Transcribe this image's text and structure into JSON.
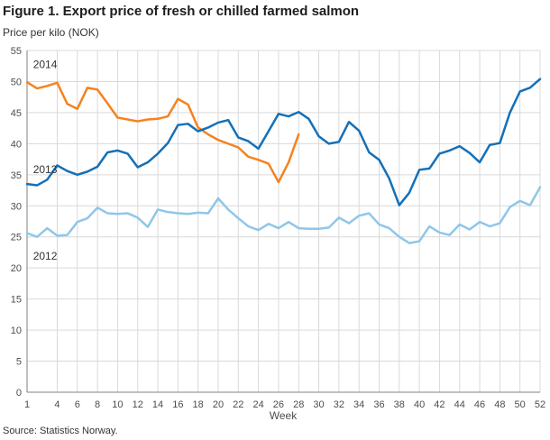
{
  "title": "Figure 1. Export price of fresh or chilled farmed salmon",
  "subtitle": "Price per kilo (NOK)",
  "source": "Source: Statistics Norway.",
  "chart_data": {
    "type": "line",
    "title": "Figure 1. Export price of fresh or chilled farmed salmon",
    "subtitle": "Price per kilo (NOK)",
    "xlabel": "Week",
    "ylabel": "Price per kilo (NOK)",
    "xlim": [
      1,
      52
    ],
    "ylim": [
      0,
      55
    ],
    "grid": true,
    "legend_position": "inline-labels",
    "x_ticks": [
      1,
      4,
      6,
      8,
      10,
      12,
      14,
      16,
      18,
      20,
      22,
      24,
      26,
      28,
      30,
      32,
      34,
      36,
      38,
      40,
      42,
      44,
      46,
      48,
      50,
      52
    ],
    "y_ticks": [
      0,
      5,
      10,
      15,
      20,
      25,
      30,
      35,
      40,
      45,
      50,
      55
    ],
    "colors": {
      "grid": "#d9d9d9",
      "axis": "#808080",
      "tick_text": "#4d4d4d"
    },
    "series": [
      {
        "name": "2014",
        "color": "#f58220",
        "label": {
          "week": 1.6,
          "value": 52.2
        },
        "values": [
          49.9,
          48.9,
          49.3,
          49.8,
          46.4,
          45.6,
          49.0,
          48.7,
          46.5,
          44.2,
          43.9,
          43.6,
          43.9,
          44.0,
          44.4,
          47.2,
          46.3,
          42.6,
          41.5,
          40.6,
          40.0,
          39.4,
          37.9,
          37.4,
          36.8,
          33.8,
          37.0,
          41.5
        ]
      },
      {
        "name": "2013",
        "color": "#1470b8",
        "label": {
          "week": 1.6,
          "value": 35.3
        },
        "values": [
          33.5,
          33.3,
          34.2,
          36.5,
          35.6,
          35.0,
          35.5,
          36.3,
          38.6,
          38.9,
          38.4,
          36.2,
          37.0,
          38.4,
          40.1,
          43.0,
          43.2,
          42.0,
          42.6,
          43.4,
          43.8,
          41.0,
          40.4,
          39.2,
          42.0,
          44.8,
          44.4,
          45.1,
          44.0,
          41.2,
          40.0,
          40.3,
          43.5,
          42.1,
          38.6,
          37.4,
          34.4,
          30.1,
          32.1,
          35.8,
          36.0,
          38.4,
          38.9,
          39.6,
          38.5,
          37.0,
          39.8,
          40.1,
          45.0,
          48.4,
          49.0,
          50.4
        ]
      },
      {
        "name": "2012",
        "color": "#8fc7e8",
        "label": {
          "week": 1.6,
          "value": 21.3
        },
        "values": [
          25.6,
          25.0,
          26.4,
          25.2,
          25.3,
          27.4,
          28.0,
          29.7,
          28.8,
          28.7,
          28.8,
          28.1,
          26.6,
          29.4,
          29.0,
          28.8,
          28.7,
          28.9,
          28.8,
          31.2,
          29.4,
          28.0,
          26.7,
          26.1,
          27.1,
          26.4,
          27.4,
          26.4,
          26.3,
          26.3,
          26.5,
          28.1,
          27.2,
          28.4,
          28.8,
          27.0,
          26.4,
          25.0,
          24.0,
          24.3,
          26.7,
          25.7,
          25.3,
          27.0,
          26.2,
          27.4,
          26.7,
          27.2,
          29.8,
          30.8,
          30.1,
          33.0
        ]
      }
    ]
  }
}
